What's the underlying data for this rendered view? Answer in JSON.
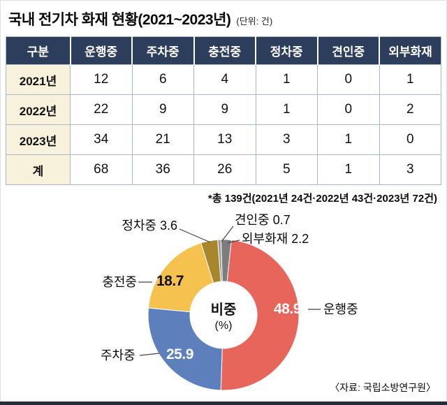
{
  "title": {
    "main": "국내 전기차 화재 현황(2021~2023년)",
    "unit": "(단위: 건)"
  },
  "table": {
    "columns": [
      "구분",
      "운행중",
      "주차중",
      "충전중",
      "정차중",
      "견인중",
      "외부화재"
    ],
    "rows": [
      {
        "label": "2021년",
        "values": [
          12,
          6,
          4,
          1,
          0,
          1
        ]
      },
      {
        "label": "2022년",
        "values": [
          22,
          9,
          9,
          1,
          0,
          2
        ]
      },
      {
        "label": "2023년",
        "values": [
          34,
          21,
          13,
          3,
          1,
          0
        ]
      },
      {
        "label": "계",
        "values": [
          68,
          36,
          26,
          5,
          1,
          3
        ]
      }
    ],
    "note": "*총 139건(2021년 24건·2022년 43건·2023년 72건)"
  },
  "chart_data": {
    "type": "pie",
    "title": "비중 (%)",
    "center_label": {
      "line1": "비중",
      "line2": "(%)"
    },
    "total_note": "총 139건",
    "slices": [
      {
        "key": "driving",
        "label": "운행중",
        "value": 48.9,
        "color": "#e8655b"
      },
      {
        "key": "parked",
        "label": "주차중",
        "value": 25.9,
        "color": "#5d80bd"
      },
      {
        "key": "charging",
        "label": "충전중",
        "value": 18.7,
        "color": "#f5c14f"
      },
      {
        "key": "stopped",
        "label": "정차중",
        "value": 3.6,
        "color": "#a8862c"
      },
      {
        "key": "towing",
        "label": "견인중",
        "value": 0.7,
        "color": "#9e9e9e"
      },
      {
        "key": "external",
        "label": "외부화재",
        "value": 2.2,
        "color": "#7d7d7d"
      }
    ]
  },
  "source": "〈자료: 국립소방연구원〉",
  "colors": {
    "table_header_bg": "#2c3e5c",
    "table_header_text": "#ffffff",
    "year_cell_bg": "#f8f1dc",
    "grid_line": "#a9b7c9",
    "bottom_bar": "#262c39"
  }
}
